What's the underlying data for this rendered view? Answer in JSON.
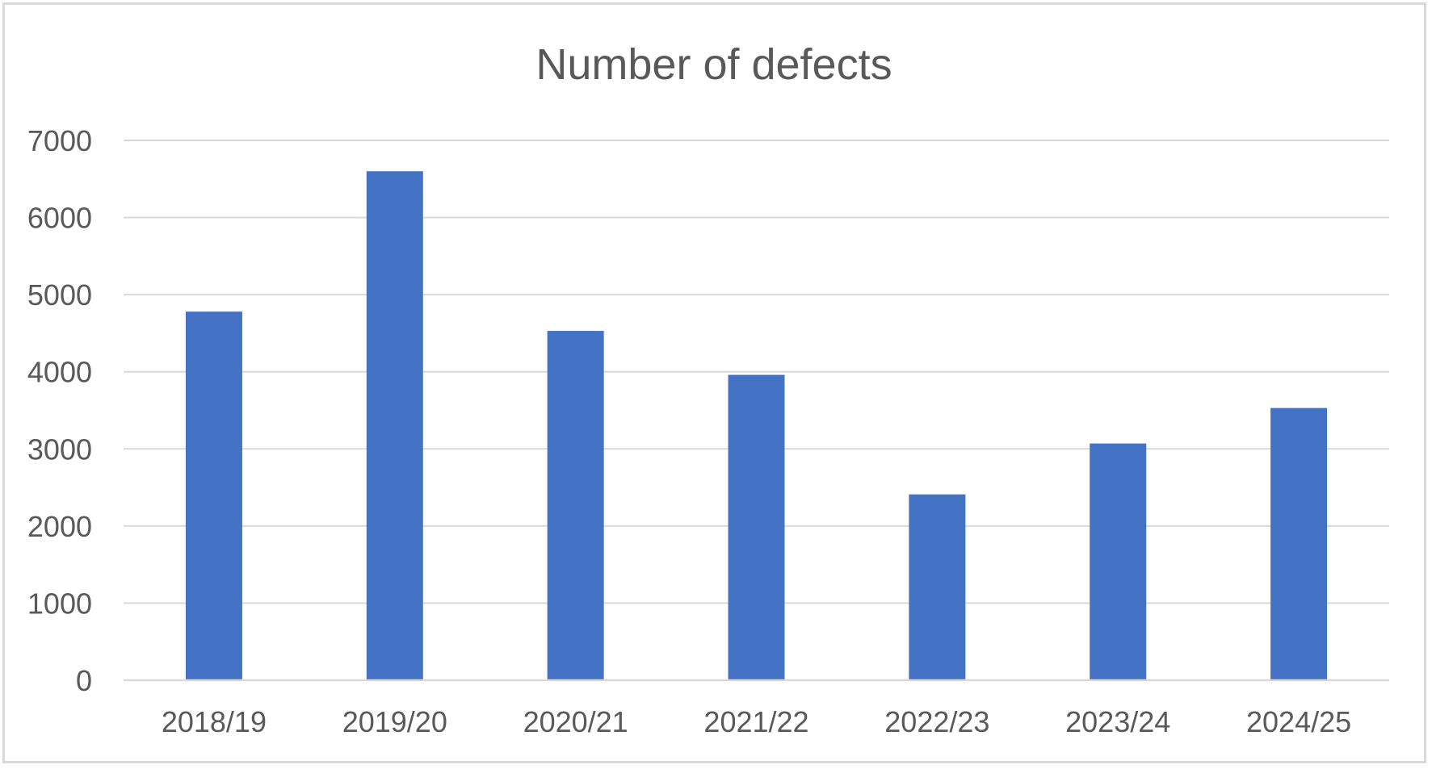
{
  "chart_data": {
    "type": "bar",
    "title": "Number of defects",
    "xlabel": "",
    "ylabel": "",
    "categories": [
      "2018/19",
      "2019/20",
      "2020/21",
      "2021/22",
      "2022/23",
      "2023/24",
      "2024/25"
    ],
    "values": [
      4780,
      6600,
      4530,
      3960,
      2410,
      3070,
      3530
    ],
    "ylim": [
      0,
      7000
    ],
    "yticks": [
      0,
      1000,
      2000,
      3000,
      4000,
      5000,
      6000,
      7000
    ],
    "grid": true,
    "legend": "none",
    "colors": {
      "bar": "#4472c4",
      "grid": "#d9d9d9",
      "text": "#595959",
      "border": "#d9d9d9"
    }
  }
}
